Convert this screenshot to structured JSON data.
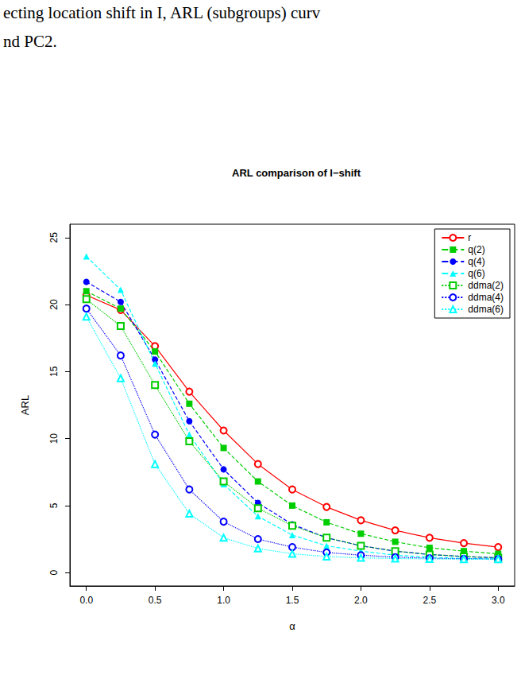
{
  "chart_data": {
    "type": "line",
    "title": "ARL comparison of I−shift",
    "annotations": [
      "ecting location shift in I, ARL (subgroups) curv",
      "nd PC2."
    ],
    "xlabel": "α",
    "ylabel": "ARL",
    "x": [
      0,
      0.25,
      0.5,
      0.75,
      1,
      1.25,
      1.5,
      1.75,
      2,
      2.25,
      2.5,
      2.75,
      3
    ],
    "series": [
      {
        "name": "r",
        "color": "#ff0000",
        "marker": "circle_plus",
        "line_style": "solid",
        "values": [
          20.7,
          19.6,
          16.9,
          13.5,
          10.6,
          8.1,
          6.2,
          4.9,
          3.9,
          3.15,
          2.6,
          2.2,
          1.9
        ]
      },
      {
        "name": "q(2)",
        "color": "#00cd00",
        "marker": "square",
        "line_style": "dashed",
        "values": [
          21.0,
          19.7,
          16.5,
          12.6,
          9.3,
          6.8,
          5.0,
          3.75,
          2.9,
          2.3,
          1.85,
          1.6,
          1.4
        ]
      },
      {
        "name": "q(4)",
        "color": "#0000ff",
        "marker": "circle",
        "line_style": "dashed",
        "values": [
          21.7,
          20.2,
          15.9,
          11.3,
          7.7,
          5.2,
          3.6,
          2.6,
          2.0,
          1.6,
          1.35,
          1.2,
          1.1
        ]
      },
      {
        "name": "q(6)",
        "color": "#00ffff",
        "marker": "triangle",
        "line_style": "dashed",
        "values": [
          23.6,
          21.1,
          15.6,
          10.3,
          6.6,
          4.2,
          2.8,
          2.0,
          1.6,
          1.3,
          1.15,
          1.05,
          1.02
        ]
      },
      {
        "name": "ddma(2)",
        "color": "#00cd00",
        "marker": "open_square",
        "line_style": "dotted",
        "values": [
          20.4,
          18.4,
          14.0,
          9.8,
          6.8,
          4.8,
          3.5,
          2.6,
          2.0,
          1.6,
          1.35,
          1.2,
          1.1
        ]
      },
      {
        "name": "ddma(4)",
        "color": "#0000ff",
        "marker": "open_circle",
        "line_style": "dotted",
        "values": [
          19.7,
          16.2,
          10.3,
          6.2,
          3.8,
          2.5,
          1.9,
          1.5,
          1.3,
          1.15,
          1.07,
          1.03,
          1.01
        ]
      },
      {
        "name": "ddma(6)",
        "color": "#00ffff",
        "marker": "open_triangle",
        "line_style": "dotted",
        "values": [
          19.1,
          14.5,
          8.1,
          4.4,
          2.6,
          1.8,
          1.4,
          1.2,
          1.1,
          1.05,
          1.02,
          1.0,
          1.0
        ]
      }
    ],
    "xlim": [
      -0.12,
      3.12
    ],
    "xticks": [
      {
        "value": 0,
        "label": "0.0"
      },
      0.5,
      {
        "value": 1,
        "label": "1.0"
      },
      1.5,
      {
        "value": 2,
        "label": "2.0"
      },
      2.5,
      {
        "value": 3,
        "label": "3.0"
      }
    ],
    "ylim": [
      -1,
      26
    ],
    "yticks": [
      0,
      5,
      10,
      15,
      20,
      25
    ],
    "grid": false,
    "legend": "top-right"
  }
}
